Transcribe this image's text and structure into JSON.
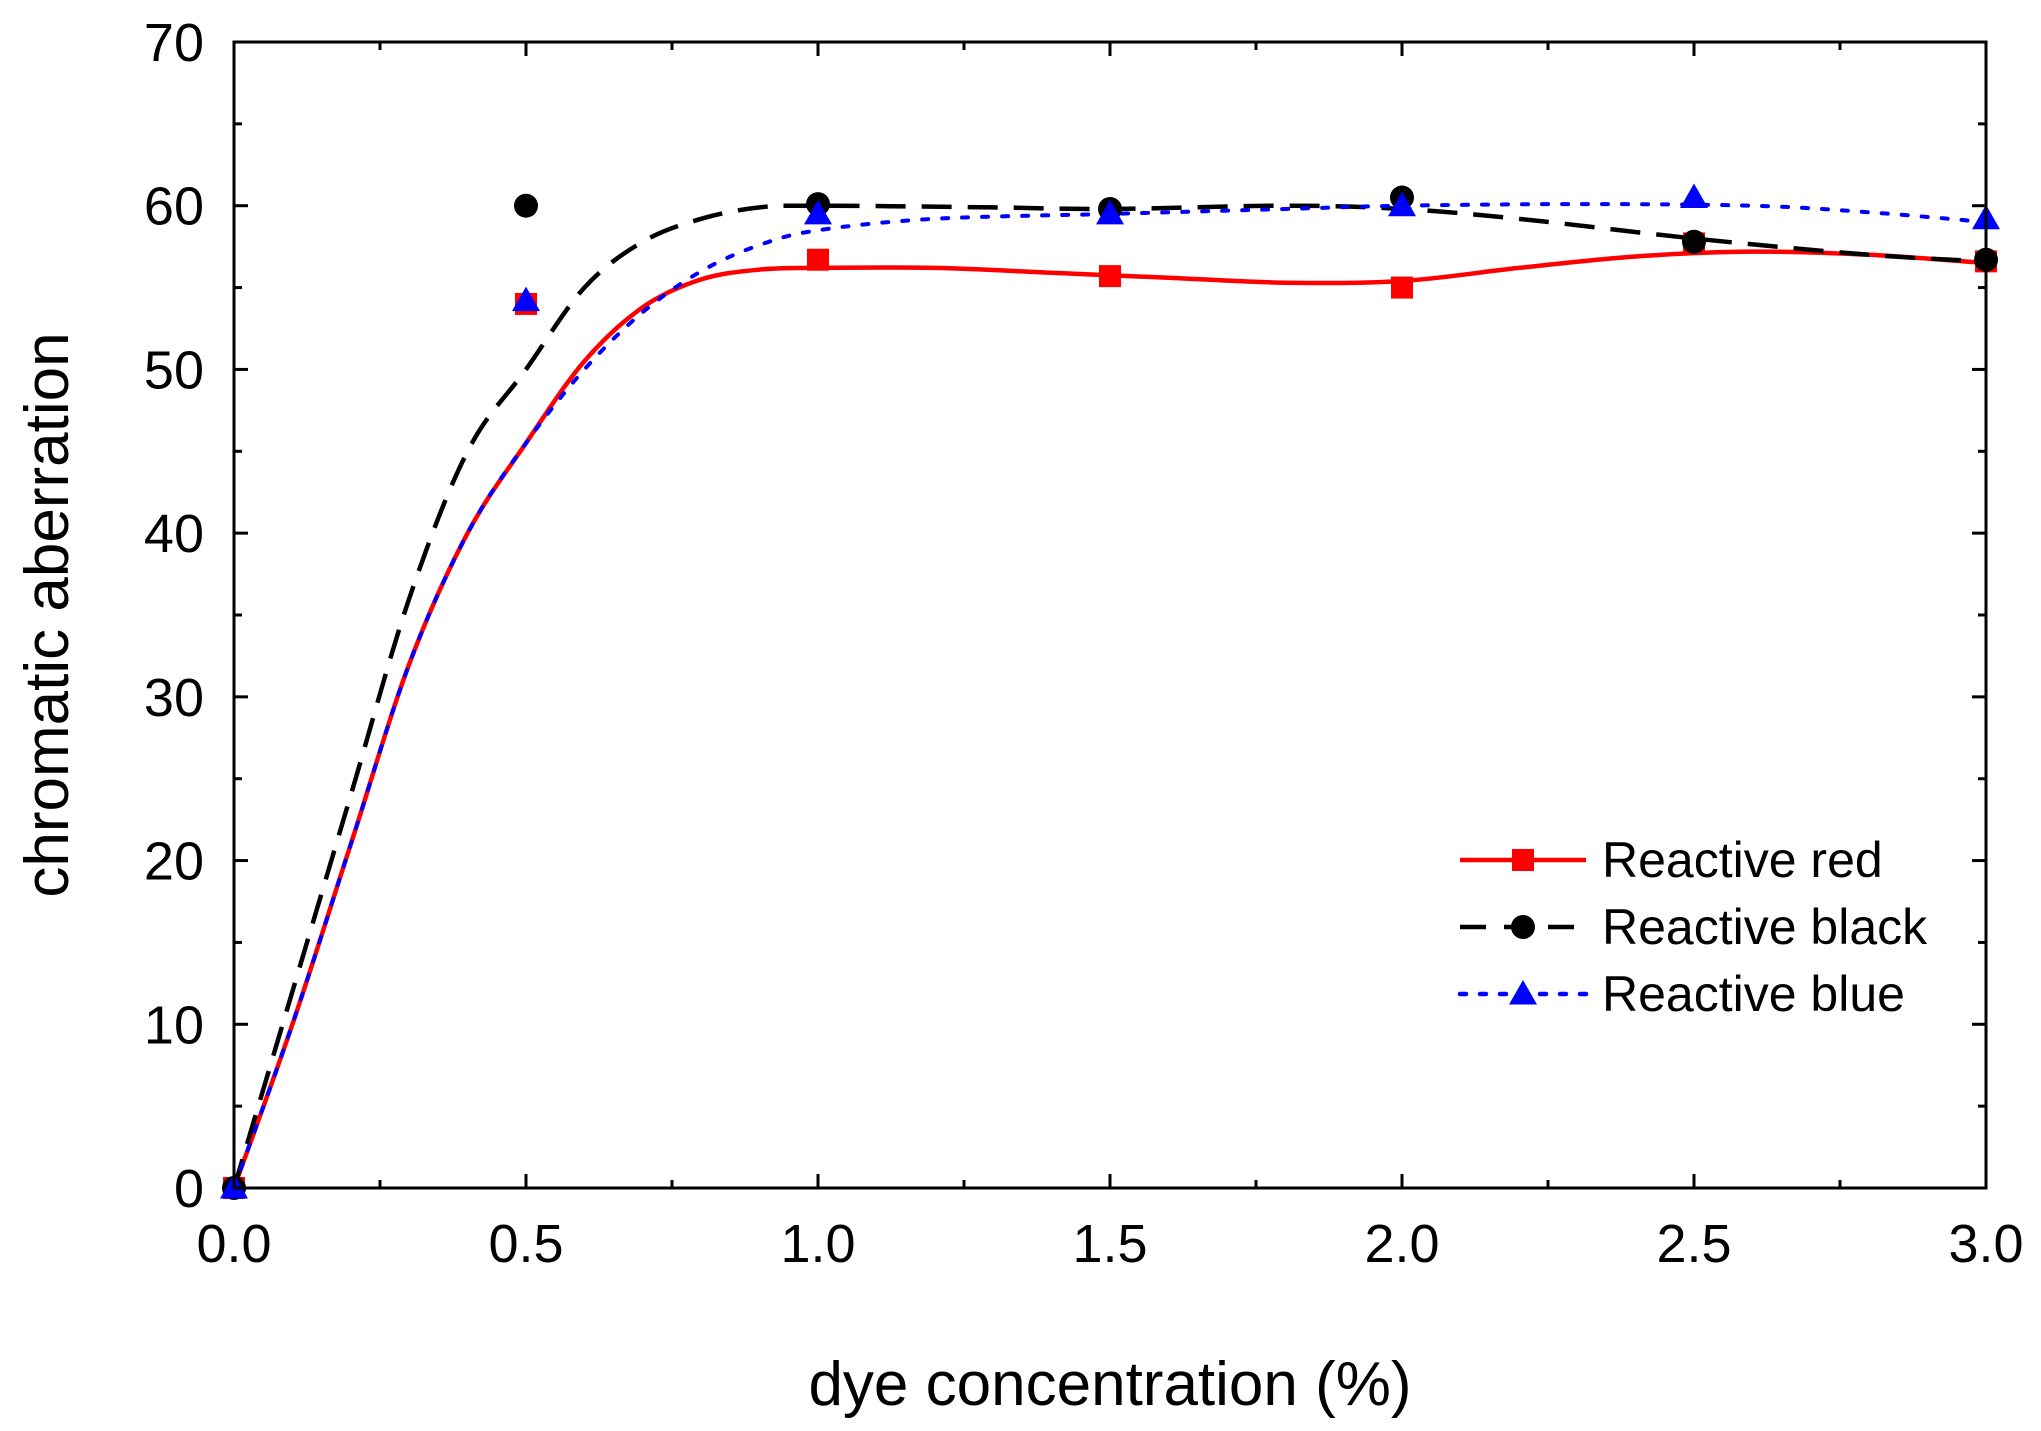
{
  "chart_data": {
    "type": "line",
    "title": "",
    "xlabel": "dye concentration (%)",
    "ylabel": "chromatic aberration",
    "xlim": [
      0,
      3.0
    ],
    "ylim": [
      0,
      70
    ],
    "x_ticks": [
      "0.0",
      "0.5",
      "1.0",
      "1.5",
      "2.0",
      "2.5",
      "3.0"
    ],
    "y_ticks": [
      "0",
      "10",
      "20",
      "30",
      "40",
      "50",
      "60",
      "70"
    ],
    "legend_position": "lower-right",
    "series": [
      {
        "name": "Reactive red",
        "color": "#ff0000",
        "marker": "square",
        "line_style": "solid",
        "x": [
          0,
          0.5,
          1.0,
          1.5,
          2.0,
          2.5,
          3.0
        ],
        "y": [
          0,
          54.0,
          56.7,
          55.7,
          55.0,
          57.7,
          56.6
        ],
        "fit_curve": [
          [
            0,
            0
          ],
          [
            0.1,
            10
          ],
          [
            0.2,
            21
          ],
          [
            0.3,
            32
          ],
          [
            0.4,
            40
          ],
          [
            0.5,
            45.5
          ],
          [
            0.6,
            50.5
          ],
          [
            0.7,
            53.8
          ],
          [
            0.8,
            55.5
          ],
          [
            0.9,
            56.1
          ],
          [
            1.0,
            56.2
          ],
          [
            1.2,
            56.2
          ],
          [
            1.4,
            55.9
          ],
          [
            1.6,
            55.6
          ],
          [
            1.8,
            55.3
          ],
          [
            2.0,
            55.4
          ],
          [
            2.2,
            56.2
          ],
          [
            2.4,
            56.9
          ],
          [
            2.6,
            57.2
          ],
          [
            2.8,
            57.0
          ],
          [
            3.0,
            56.5
          ]
        ]
      },
      {
        "name": "Reactive black",
        "color": "#000000",
        "marker": "circle",
        "line_style": "dashed",
        "x": [
          0,
          0.5,
          1.0,
          1.5,
          2.0,
          2.5,
          3.0
        ],
        "y": [
          0,
          60.0,
          60.1,
          59.8,
          60.5,
          57.8,
          56.7
        ],
        "fit_curve": [
          [
            0,
            0
          ],
          [
            0.1,
            12
          ],
          [
            0.2,
            24
          ],
          [
            0.3,
            36
          ],
          [
            0.4,
            45
          ],
          [
            0.5,
            50
          ],
          [
            0.6,
            55
          ],
          [
            0.7,
            57.8
          ],
          [
            0.8,
            59.2
          ],
          [
            0.9,
            59.9
          ],
          [
            1.0,
            60.0
          ],
          [
            1.3,
            59.9
          ],
          [
            1.5,
            59.8
          ],
          [
            1.8,
            60.0
          ],
          [
            2.0,
            59.8
          ],
          [
            2.2,
            59.2
          ],
          [
            2.5,
            58.0
          ],
          [
            2.8,
            57.0
          ],
          [
            3.0,
            56.6
          ]
        ]
      },
      {
        "name": "Reactive blue",
        "color": "#0000ff",
        "marker": "triangle",
        "line_style": "dotted",
        "x": [
          0,
          0.5,
          1.0,
          1.5,
          2.0,
          2.5,
          3.0
        ],
        "y": [
          0,
          54.2,
          59.5,
          59.5,
          60.0,
          60.5,
          59.2
        ],
        "fit_curve": [
          [
            0,
            0
          ],
          [
            0.1,
            10
          ],
          [
            0.2,
            21
          ],
          [
            0.3,
            32
          ],
          [
            0.4,
            40
          ],
          [
            0.5,
            45.5
          ],
          [
            0.6,
            50
          ],
          [
            0.7,
            53.5
          ],
          [
            0.8,
            56
          ],
          [
            0.9,
            57.6
          ],
          [
            1.0,
            58.5
          ],
          [
            1.2,
            59.2
          ],
          [
            1.5,
            59.5
          ],
          [
            1.8,
            59.8
          ],
          [
            2.0,
            60.0
          ],
          [
            2.3,
            60.1
          ],
          [
            2.6,
            60.0
          ],
          [
            2.8,
            59.6
          ],
          [
            3.0,
            59.0
          ]
        ]
      }
    ]
  }
}
